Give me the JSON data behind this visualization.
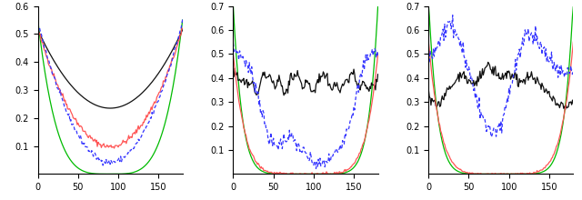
{
  "green_color": "#00bb00",
  "black_color": "#111111",
  "red_color": "#ff5555",
  "blue_color": "#3333ff",
  "lw": 0.9
}
